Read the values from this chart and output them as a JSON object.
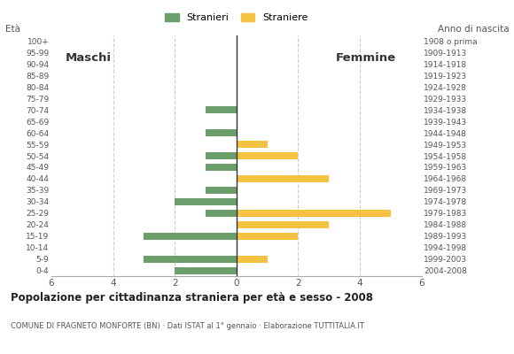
{
  "age_groups": [
    "100+",
    "95-99",
    "90-94",
    "85-89",
    "80-84",
    "75-79",
    "70-74",
    "65-69",
    "60-64",
    "55-59",
    "50-54",
    "45-49",
    "40-44",
    "35-39",
    "30-34",
    "25-29",
    "20-24",
    "15-19",
    "10-14",
    "5-9",
    "0-4"
  ],
  "birth_years": [
    "1908 o prima",
    "1909-1913",
    "1914-1918",
    "1919-1923",
    "1924-1928",
    "1929-1933",
    "1934-1938",
    "1939-1943",
    "1944-1948",
    "1949-1953",
    "1954-1958",
    "1959-1963",
    "1964-1968",
    "1969-1973",
    "1974-1978",
    "1979-1983",
    "1984-1988",
    "1989-1993",
    "1994-1998",
    "1999-2003",
    "2004-2008"
  ],
  "stranieri": [
    0,
    0,
    0,
    0,
    0,
    0,
    1,
    0,
    1,
    0,
    1,
    1,
    0,
    1,
    2,
    1,
    0,
    3,
    0,
    3,
    2
  ],
  "straniere": [
    0,
    0,
    0,
    0,
    0,
    0,
    0,
    0,
    0,
    1,
    2,
    0,
    3,
    0,
    0,
    5,
    3,
    2,
    0,
    1,
    0
  ],
  "color_stranieri": "#6b9e6b",
  "color_straniere": "#f5c242",
  "xlim": 6,
  "title": "Popolazione per cittadinanza straniera per età e sesso - 2008",
  "subtitle": "COMUNE DI FRAGNETO MONFORTE (BN) · Dati ISTAT al 1° gennaio · Elaborazione TUTTITALIA.IT",
  "legend_stranieri": "Stranieri",
  "legend_straniere": "Straniere",
  "xlabel_left": "Maschi",
  "xlabel_right": "Femmine",
  "ylabel_age": "Età",
  "ylabel_birth": "Anno di nascita",
  "background_color": "#ffffff"
}
